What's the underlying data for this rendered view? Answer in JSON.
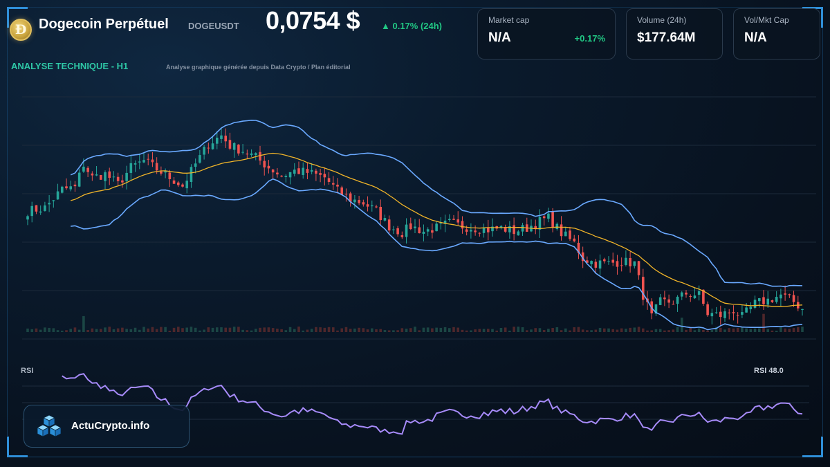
{
  "header": {
    "coin_logo_text": "Ð",
    "title": "Dogecoin Perpétuel",
    "ticker": "DOGEUSDT",
    "price": "0,0754 $",
    "change": "▲ 0.17% (24h)"
  },
  "cards": {
    "market_cap": {
      "label": "Market cap",
      "value": "N/A",
      "delta": "+0.17%"
    },
    "volume": {
      "label": "Volume (24h)",
      "value": "$177.64M"
    },
    "vol_mkt_cap": {
      "label": "Vol/Mkt Cap",
      "value": "N/A"
    }
  },
  "section": {
    "title": "ANALYSE TECHNIQUE - H1",
    "subtitle": "Analyse graphique générée depuis Data Crypto / Plan éditorial"
  },
  "rsi": {
    "label": "RSI",
    "value_label": "RSI 48.0"
  },
  "brand": {
    "name": "ActuCrypto.info"
  },
  "colors": {
    "up": "#26a69a",
    "down": "#ef5350",
    "bollinger": "#6aa9ff",
    "sma": "#f0b429",
    "rsi": "#a78bfa",
    "accent": "#2ec7a6",
    "frame": "#2f8fd8"
  },
  "chart_data": {
    "type": "candlestick",
    "interval": "H1",
    "close_anchors": [
      [
        0,
        0.0812
      ],
      [
        4,
        0.0814
      ],
      [
        8,
        0.0825
      ],
      [
        11,
        0.0826
      ],
      [
        13,
        0.084
      ],
      [
        15,
        0.0832
      ],
      [
        18,
        0.0834
      ],
      [
        21,
        0.0828
      ],
      [
        24,
        0.0838
      ],
      [
        27,
        0.0842
      ],
      [
        30,
        0.0837
      ],
      [
        33,
        0.0832
      ],
      [
        36,
        0.0827
      ],
      [
        39,
        0.084
      ],
      [
        42,
        0.0852
      ],
      [
        45,
        0.0857
      ],
      [
        47,
        0.0851
      ],
      [
        50,
        0.0848
      ],
      [
        53,
        0.0844
      ],
      [
        56,
        0.0838
      ],
      [
        59,
        0.0833
      ],
      [
        62,
        0.0836
      ],
      [
        65,
        0.0835
      ],
      [
        69,
        0.0832
      ],
      [
        72,
        0.0824
      ],
      [
        75,
        0.0819
      ],
      [
        78,
        0.0817
      ],
      [
        81,
        0.0812
      ],
      [
        84,
        0.0803
      ],
      [
        87,
        0.0799
      ],
      [
        89,
        0.0803
      ],
      [
        92,
        0.08
      ],
      [
        95,
        0.0802
      ],
      [
        98,
        0.0805
      ],
      [
        101,
        0.0803
      ],
      [
        104,
        0.0802
      ],
      [
        107,
        0.0801
      ],
      [
        110,
        0.0802
      ],
      [
        113,
        0.08
      ],
      [
        116,
        0.0802
      ],
      [
        119,
        0.0806
      ],
      [
        121,
        0.0808
      ],
      [
        124,
        0.0799
      ],
      [
        127,
        0.0793
      ],
      [
        129,
        0.0784
      ],
      [
        132,
        0.0781
      ],
      [
        135,
        0.0781
      ],
      [
        138,
        0.0782
      ],
      [
        141,
        0.0781
      ],
      [
        143,
        0.0762
      ],
      [
        145,
        0.0749
      ],
      [
        147,
        0.0758
      ],
      [
        150,
        0.0758
      ],
      [
        153,
        0.0763
      ],
      [
        156,
        0.0762
      ],
      [
        158,
        0.0751
      ],
      [
        161,
        0.075
      ],
      [
        164,
        0.0753
      ],
      [
        166,
        0.0749
      ],
      [
        169,
        0.0757
      ],
      [
        172,
        0.0759
      ],
      [
        175,
        0.0762
      ],
      [
        178,
        0.0758
      ],
      [
        180,
        0.0754
      ]
    ],
    "y_range": [
      0.074,
      0.088
    ],
    "indicators": [
      "Bollinger Bands (20, 2)",
      "SMA 20",
      "Volume",
      "RSI 14"
    ],
    "rsi_last": 48.0,
    "grid": true
  }
}
